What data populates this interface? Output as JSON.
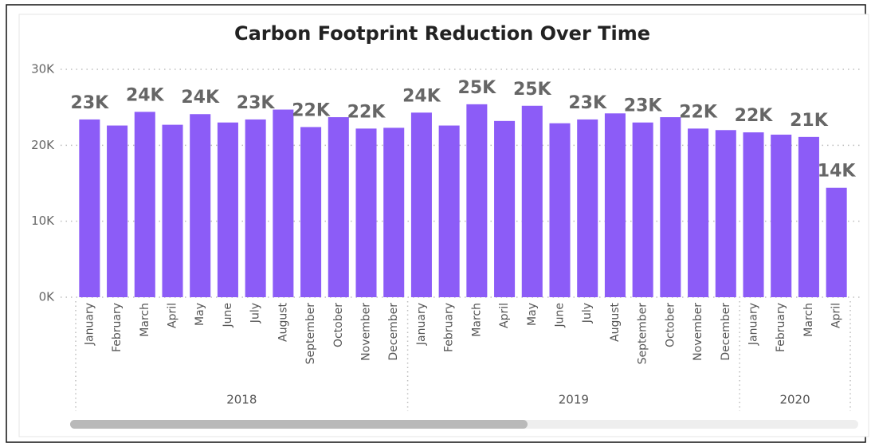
{
  "chart_data": {
    "type": "bar",
    "title": "Carbon Footprint Reduction Over Time",
    "color": "#8c5cf7",
    "groups": [
      {
        "label": "2018",
        "months": [
          "January",
          "February",
          "March",
          "April",
          "May",
          "June",
          "July",
          "August",
          "September",
          "October",
          "November",
          "December"
        ]
      },
      {
        "label": "2019",
        "months": [
          "January",
          "February",
          "March",
          "April",
          "May",
          "June",
          "July",
          "August",
          "September",
          "October",
          "November",
          "December"
        ]
      },
      {
        "label": "2020",
        "months": [
          "January",
          "February",
          "March",
          "April"
        ]
      }
    ],
    "values": [
      23400,
      22600,
      24400,
      22700,
      24100,
      23000,
      23400,
      24700,
      22400,
      23700,
      22200,
      22300,
      24300,
      22600,
      25400,
      23200,
      25200,
      22900,
      23400,
      24200,
      23000,
      23700,
      22200,
      22000,
      21700,
      21400,
      21100,
      14400
    ],
    "value_labels": [
      "23K",
      null,
      "24K",
      null,
      "24K",
      null,
      "23K",
      null,
      "22K",
      null,
      "22K",
      null,
      "24K",
      null,
      "25K",
      null,
      "25K",
      null,
      "23K",
      null,
      "23K",
      null,
      "22K",
      null,
      "22K",
      null,
      "21K",
      "14K"
    ],
    "ylim": [
      0,
      30000
    ],
    "yticks": [
      {
        "value": 0,
        "label": "0K"
      },
      {
        "value": 10000,
        "label": "10K"
      },
      {
        "value": 20000,
        "label": "20K"
      },
      {
        "value": 30000,
        "label": "30K"
      }
    ],
    "grid": true
  }
}
